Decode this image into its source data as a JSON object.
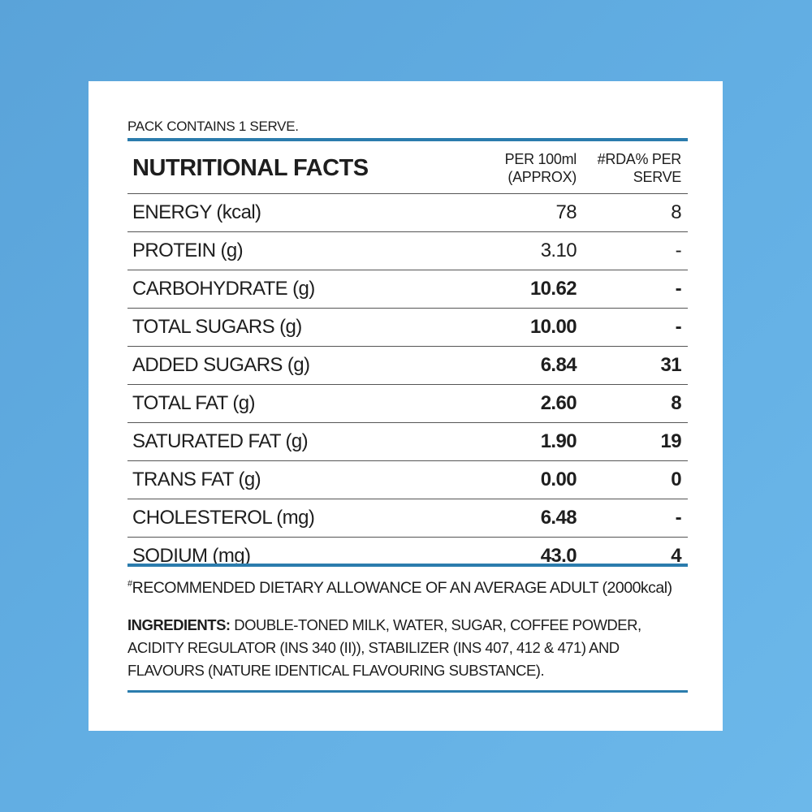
{
  "pack_note": "PACK CONTAINS 1 SERVE.",
  "table": {
    "title": "NUTRITIONAL FACTS",
    "col1_header_line1": "PER 100ml",
    "col1_header_line2": "(APPROX)",
    "col2_header_line1": "#RDA% PER",
    "col2_header_line2": "SERVE",
    "rows": [
      {
        "label": "ENERGY (kcal)",
        "per100": "78",
        "rda": "8"
      },
      {
        "label": "PROTEIN (g)",
        "per100": "3.10",
        "rda": "-"
      },
      {
        "label": "CARBOHYDRATE (g)",
        "per100": "10.62",
        "rda": "-"
      },
      {
        "label": "TOTAL SUGARS  (g)",
        "per100": "10.00",
        "rda": "-"
      },
      {
        "label": "ADDED SUGARS  (g)",
        "per100": "6.84",
        "rda": "31"
      },
      {
        "label": "TOTAL FAT (g)",
        "per100": "2.60",
        "rda": "8"
      },
      {
        "label": "SATURATED FAT (g)",
        "per100": "1.90",
        "rda": "19"
      },
      {
        "label": "TRANS FAT (g)",
        "per100": "0.00",
        "rda": "0"
      },
      {
        "label": "CHOLESTEROL  (mg)",
        "per100": "6.48",
        "rda": "-"
      },
      {
        "label": "SODIUM  (mg)",
        "per100": "43.0",
        "rda": "4"
      }
    ]
  },
  "footnote_mark": "#",
  "footnote": "RECOMMENDED DIETARY ALLOWANCE OF AN AVERAGE ADULT (2000kcal)",
  "ingredients_label": "INGREDIENTS:",
  "ingredients_text": " DOUBLE-TONED MILK, WATER, SUGAR, COFFEE POWDER, ACIDITY REGULATOR (INS 340 (II)), STABILIZER (INS 407, 412 & 471) AND FLAVOURS (NATURE IDENTICAL FLAVOURING SUBSTANCE).",
  "colors": {
    "accent_line": "#2b7cad",
    "background": "#62aee3"
  }
}
